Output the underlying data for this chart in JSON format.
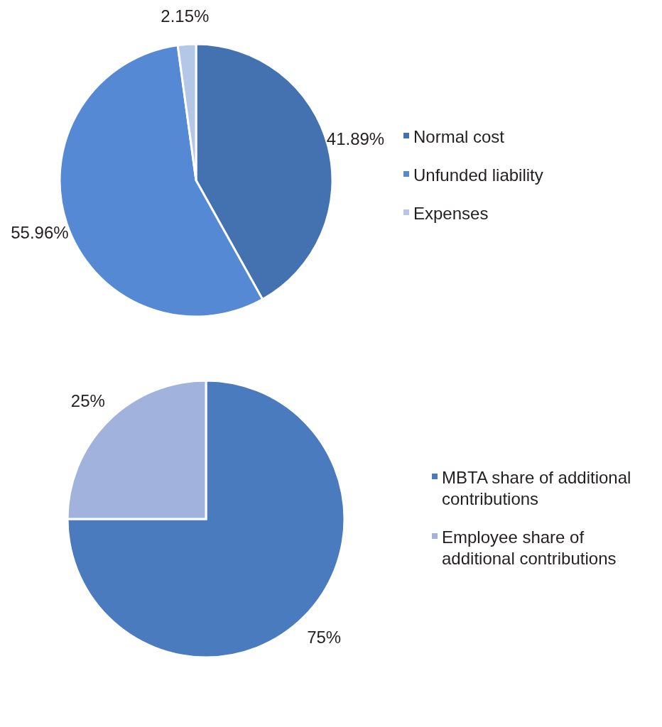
{
  "chart_data": [
    {
      "type": "pie",
      "categories": [
        "Normal cost",
        "Unfunded liability",
        "Expenses"
      ],
      "values": [
        41.89,
        55.96,
        2.15
      ],
      "value_labels": [
        "41.89%",
        "55.96%",
        "2.15%"
      ],
      "colors": [
        "#4472b0",
        "#5589d3",
        "#b4c7e7"
      ],
      "legend": "right"
    },
    {
      "type": "pie",
      "categories": [
        "MBTA share of additional contributions",
        "Employee share of additional contributions"
      ],
      "values": [
        75,
        25
      ],
      "value_labels": [
        "75%",
        "25%"
      ],
      "colors": [
        "#4a7bbf",
        "#a1b3dc"
      ],
      "legend": "right"
    }
  ]
}
